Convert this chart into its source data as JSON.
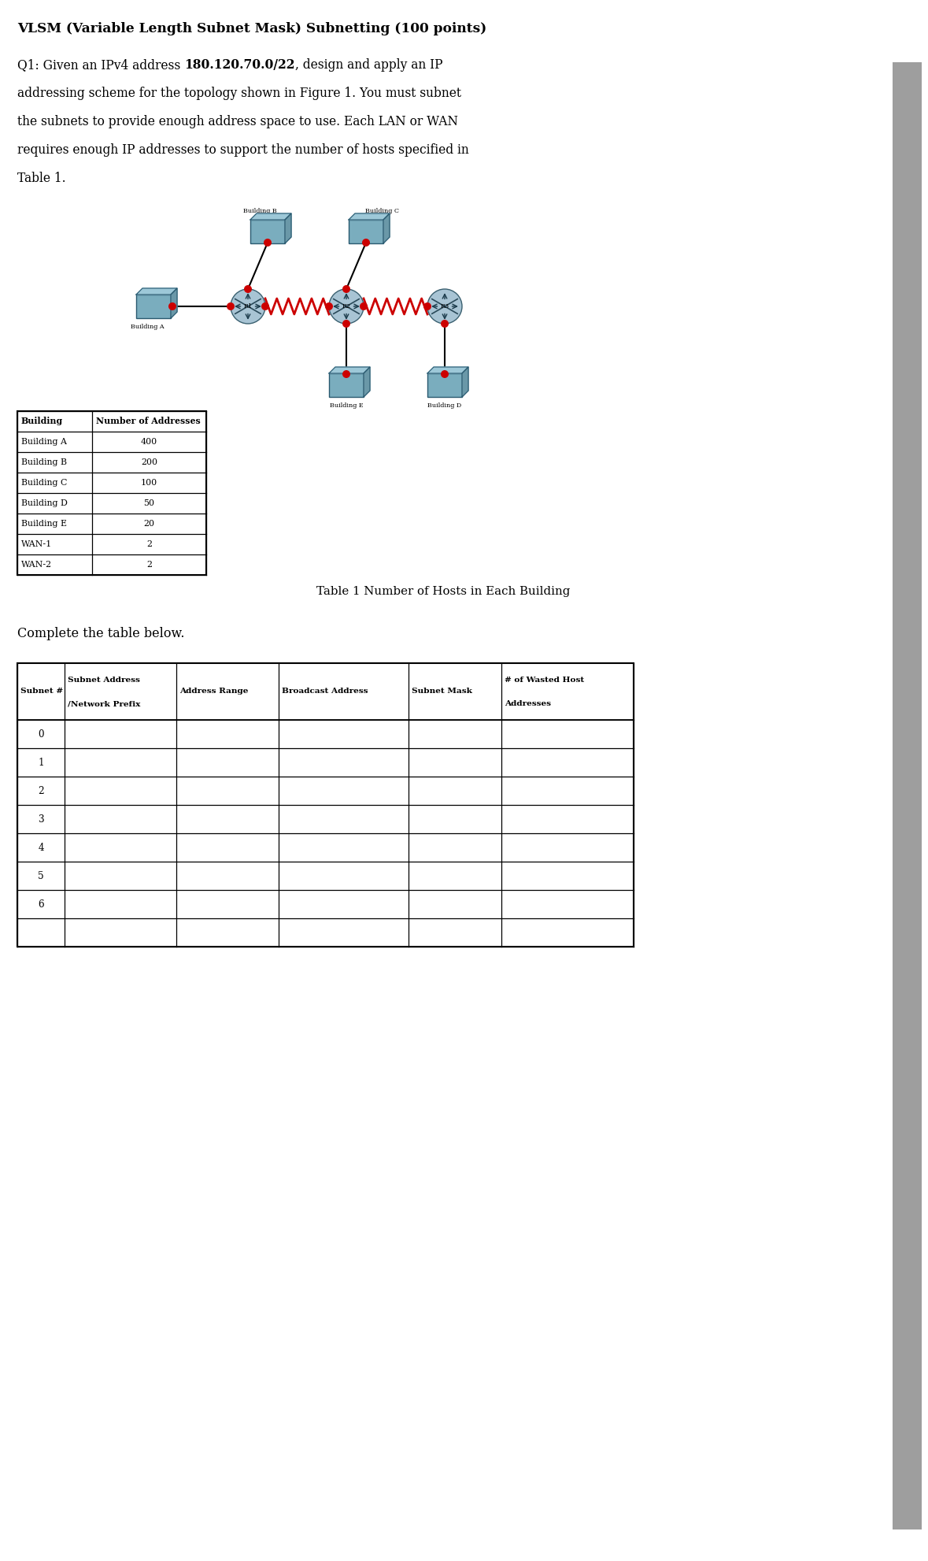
{
  "title": "VLSM (Variable Length Subnet Mask) Subnetting (100 points)",
  "q_lines": [
    [
      [
        "Q1: Given an IPv4 address ",
        false
      ],
      [
        "180.120.70.0/22",
        true
      ],
      [
        ", design and apply an IP",
        false
      ]
    ],
    [
      [
        "addressing scheme for the topology shown in Figure 1. You must subnet",
        false
      ]
    ],
    [
      [
        "the subnets to provide enough address space to use. Each LAN or WAN",
        false
      ]
    ],
    [
      [
        "requires enough IP addresses to support the number of hosts specified in",
        false
      ]
    ],
    [
      [
        "Table 1.",
        false
      ]
    ]
  ],
  "table1_headers": [
    "Building",
    "Number of Addresses"
  ],
  "table1_data": [
    [
      "Building A",
      "400"
    ],
    [
      "Building B",
      "200"
    ],
    [
      "Building C",
      "100"
    ],
    [
      "Building D",
      "50"
    ],
    [
      "Building E",
      "20"
    ],
    [
      "WAN-1",
      "2"
    ],
    [
      "WAN-2",
      "2"
    ]
  ],
  "table1_caption": "Table 1 Number of Hosts in Each Building",
  "complete_text": "Complete the table below.",
  "table2_col_headers": [
    [
      "Subnet #",
      ""
    ],
    [
      "Subnet Address",
      "/Network Prefix"
    ],
    [
      "Address Range",
      ""
    ],
    [
      "Broadcast Address",
      ""
    ],
    [
      "Subnet Mask",
      ""
    ],
    [
      "# of Wasted Host",
      "Addresses"
    ]
  ],
  "table2_rows": [
    "0",
    "1",
    "2",
    "3",
    "4",
    "5",
    "6",
    ""
  ],
  "bg_color": "#ffffff",
  "text_color": "#000000",
  "scrollbar_color": "#9e9e9e",
  "red_dot_color": "#cc0000",
  "wan_line_color": "#cc0000",
  "lan_line_color": "#000000",
  "router_face_color": "#a8c4d4",
  "switch_face_color": "#7aadbe",
  "font_family": "DejaVu Serif"
}
